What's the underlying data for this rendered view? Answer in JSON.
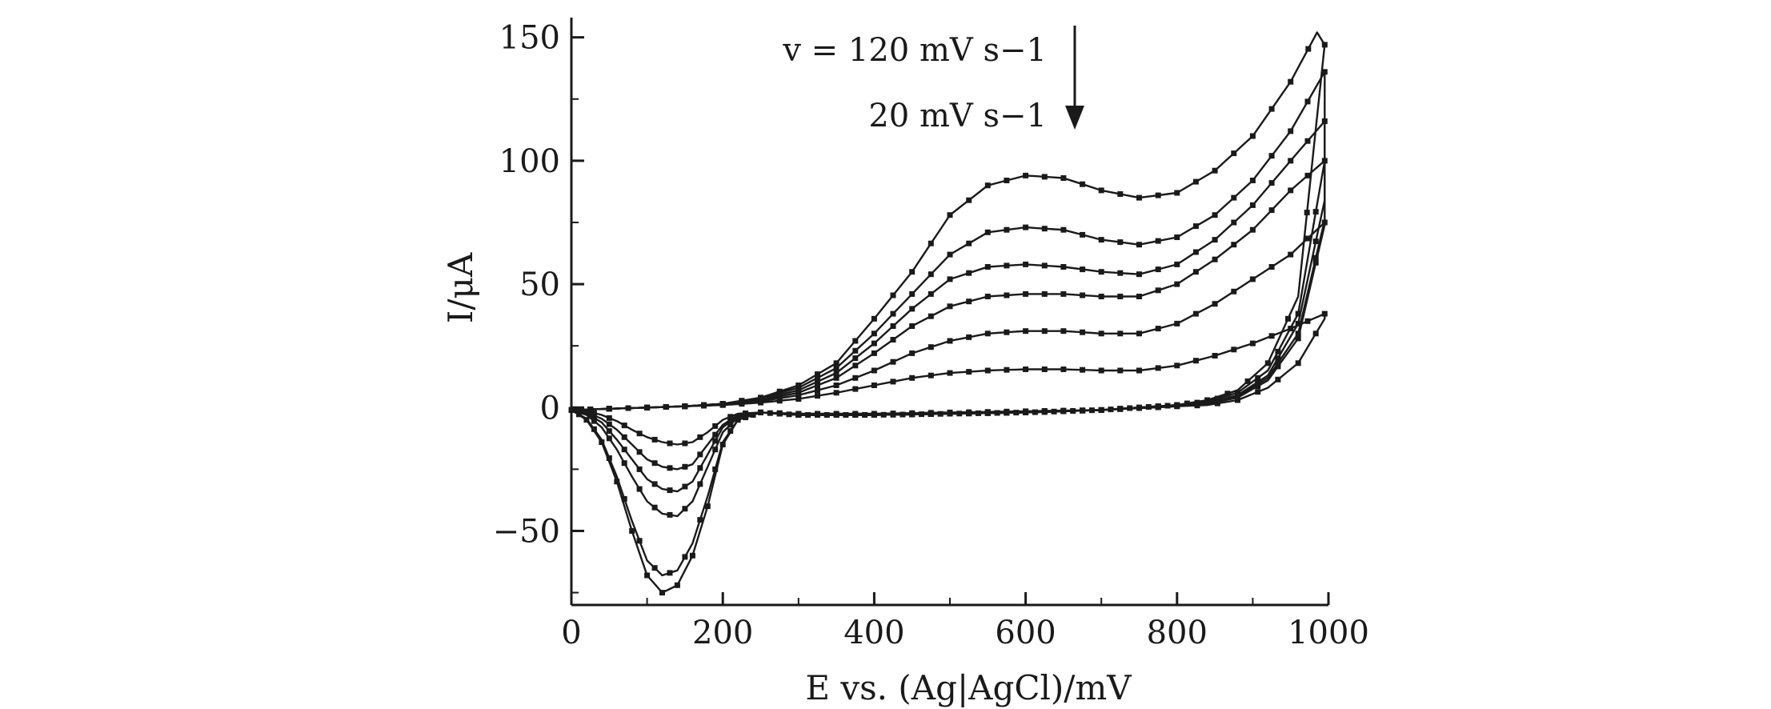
{
  "chart_data": {
    "type": "line",
    "xlabel": "E vs. (Ag|AgCl)/mV",
    "ylabel": "I/μA",
    "xlim": [
      0,
      1000
    ],
    "ylim": [
      -80,
      158
    ],
    "x_ticks": [
      0,
      200,
      400,
      600,
      800,
      1000
    ],
    "x_tick_labels": [
      "0",
      "200",
      "400",
      "600",
      "800",
      "1000"
    ],
    "y_ticks": [
      -50,
      0,
      50,
      100,
      150
    ],
    "y_tick_labels": [
      "−50",
      "0",
      "50",
      "100",
      "150"
    ],
    "grid": false,
    "legend": "none",
    "line_color": "#1a1a1a",
    "marker": "square",
    "annotation_top": "v = 120 mV s−1",
    "annotation_bottom": "20 mV s−1",
    "series": [
      {
        "forward_x": [
          0,
          50,
          100,
          150,
          200,
          250,
          300,
          350,
          400,
          450,
          500,
          550,
          600,
          650,
          700,
          750,
          800,
          850,
          900,
          950,
          985
        ],
        "forward_y": [
          -1,
          -0.5,
          0,
          0.5,
          1.5,
          4,
          9,
          18,
          36,
          55,
          78,
          90,
          94,
          93,
          88,
          85,
          87,
          96,
          110,
          132,
          152
        ],
        "return_x": [
          995,
          960,
          920,
          880,
          840,
          800,
          700,
          600,
          500,
          400,
          300,
          250,
          220,
          200,
          180,
          160,
          140,
          120,
          100,
          80,
          60,
          40,
          20,
          0
        ],
        "return_y": [
          147,
          45,
          18,
          7,
          3,
          1,
          -1,
          -2,
          -2.5,
          -3,
          -3,
          -2,
          -5,
          -15,
          -40,
          -60,
          -72,
          -75,
          -68,
          -50,
          -30,
          -14,
          -5,
          -1
        ]
      },
      {
        "forward_x": [
          0,
          50,
          100,
          150,
          200,
          250,
          300,
          350,
          400,
          450,
          500,
          550,
          600,
          650,
          700,
          750,
          800,
          850,
          900,
          950,
          995
        ],
        "forward_y": [
          -1,
          -0.5,
          0,
          0.5,
          1.5,
          4,
          8,
          16,
          30,
          46,
          62,
          71,
          73,
          72,
          68,
          66,
          69,
          78,
          92,
          112,
          136
        ],
        "return_x": [
          995,
          960,
          920,
          880,
          840,
          800,
          700,
          600,
          500,
          400,
          300,
          250,
          220,
          200,
          180,
          160,
          140,
          120,
          100,
          80,
          60,
          40,
          20,
          0
        ],
        "return_y": [
          100,
          38,
          15,
          6,
          2.5,
          1,
          -1,
          -2,
          -2.5,
          -3,
          -3,
          -2,
          -5,
          -14,
          -36,
          -55,
          -66,
          -68,
          -62,
          -46,
          -28,
          -13,
          -4.5,
          -1
        ]
      },
      {
        "forward_x": [
          0,
          50,
          100,
          150,
          200,
          250,
          300,
          350,
          400,
          450,
          500,
          550,
          600,
          650,
          700,
          750,
          800,
          850,
          900,
          950,
          995
        ],
        "forward_y": [
          -1,
          -0.5,
          0,
          0.5,
          1.5,
          3.5,
          7,
          14,
          26,
          40,
          52,
          57,
          58,
          57,
          55,
          54,
          58,
          68,
          82,
          100,
          116
        ],
        "return_x": [
          995,
          960,
          920,
          880,
          840,
          800,
          700,
          600,
          500,
          400,
          300,
          250,
          220,
          200,
          180,
          160,
          140,
          120,
          100,
          80,
          60,
          40,
          20,
          0
        ],
        "return_y": [
          84,
          34,
          13,
          5,
          2,
          1,
          -1,
          -2,
          -2.5,
          -3,
          -3,
          -2,
          -4,
          -10,
          -24,
          -38,
          -44,
          -43,
          -38,
          -28,
          -17,
          -8,
          -3,
          -1
        ]
      },
      {
        "forward_x": [
          0,
          50,
          100,
          150,
          200,
          250,
          300,
          350,
          400,
          450,
          500,
          550,
          600,
          650,
          700,
          750,
          800,
          850,
          900,
          950,
          995
        ],
        "forward_y": [
          -1,
          -0.5,
          0,
          0.5,
          1.5,
          3,
          6,
          12,
          22,
          33,
          41,
          45,
          46,
          46,
          45,
          45,
          50,
          60,
          72,
          88,
          100
        ],
        "return_x": [
          995,
          960,
          920,
          880,
          840,
          800,
          700,
          600,
          500,
          400,
          300,
          250,
          220,
          200,
          180,
          160,
          140,
          120,
          100,
          80,
          60,
          40,
          20,
          0
        ],
        "return_y": [
          76,
          30,
          12,
          4.5,
          2,
          1,
          -1,
          -2,
          -2.5,
          -3,
          -3,
          -2,
          -3.5,
          -8,
          -19,
          -30,
          -34,
          -33,
          -29,
          -21,
          -13,
          -6,
          -2.5,
          -1
        ]
      },
      {
        "forward_x": [
          0,
          50,
          100,
          150,
          200,
          250,
          300,
          350,
          400,
          450,
          500,
          550,
          600,
          650,
          700,
          750,
          800,
          850,
          900,
          950,
          995
        ],
        "forward_y": [
          -1,
          -0.5,
          0,
          0.5,
          1.2,
          2.5,
          5,
          9,
          15,
          22,
          27,
          30,
          31,
          31,
          30,
          30,
          34,
          42,
          52,
          62,
          75
        ],
        "return_x": [
          995,
          960,
          920,
          880,
          840,
          800,
          700,
          600,
          500,
          400,
          300,
          250,
          220,
          200,
          180,
          160,
          140,
          120,
          100,
          80,
          60,
          40,
          20,
          0
        ],
        "return_y": [
          74,
          28,
          11,
          4,
          1.5,
          0.5,
          -1,
          -2,
          -2.5,
          -3,
          -3,
          -2,
          -3,
          -7,
          -15,
          -23,
          -25,
          -24,
          -21,
          -15,
          -9,
          -4.5,
          -2,
          -1
        ]
      },
      {
        "forward_x": [
          0,
          50,
          100,
          150,
          200,
          250,
          300,
          350,
          400,
          450,
          500,
          550,
          600,
          650,
          700,
          750,
          800,
          850,
          900,
          950,
          995
        ],
        "forward_y": [
          -1,
          -0.5,
          0,
          0.5,
          1,
          2,
          3.5,
          6,
          9,
          12,
          14,
          15,
          15.5,
          15.5,
          15,
          15,
          17,
          21,
          26,
          32,
          38
        ],
        "return_x": [
          995,
          960,
          920,
          880,
          840,
          800,
          700,
          600,
          500,
          400,
          300,
          250,
          220,
          200,
          180,
          160,
          140,
          120,
          100,
          80,
          60,
          40,
          20,
          0
        ],
        "return_y": [
          36,
          18,
          8,
          3,
          1,
          0.5,
          -1,
          -1.5,
          -2,
          -2.5,
          -2.5,
          -2,
          -2.5,
          -5,
          -10,
          -14,
          -15,
          -14,
          -12,
          -9,
          -5.5,
          -3,
          -1.5,
          -0.5
        ]
      }
    ]
  }
}
